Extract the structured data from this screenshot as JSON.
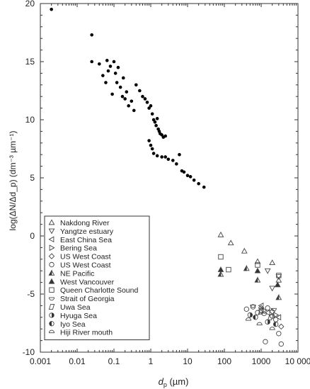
{
  "chart_data": {
    "type": "scatter",
    "xlabel": "d_p (µm)",
    "xlabel_parts": {
      "main": "d",
      "sub": "p",
      "unit": " (µm)"
    },
    "ylabel": "log(ΔN/Δd_p) (dm⁻³ µm⁻¹)",
    "x_scale": "log",
    "xlim": [
      0.001,
      10000
    ],
    "ylim": [
      -10,
      20
    ],
    "x_ticks": [
      0.001,
      0.01,
      0.1,
      1,
      10,
      100,
      1000,
      10000
    ],
    "x_tick_labels": [
      "0.001",
      "0.01",
      "0.1",
      "1",
      "10",
      "100",
      "1000",
      "10 000"
    ],
    "y_ticks": [
      -10,
      -5,
      0,
      5,
      10,
      15,
      20
    ],
    "y_tick_labels": [
      "-10",
      "-5",
      "0",
      "5",
      "10",
      "15",
      "20"
    ],
    "grid": false,
    "legend_position": "bottom-left",
    "series": [
      {
        "name": "",
        "marker": "dot",
        "points": [
          [
            0.002,
            19.5
          ],
          [
            0.025,
            17.3
          ],
          [
            0.025,
            15.0
          ],
          [
            0.04,
            14.8
          ],
          [
            0.05,
            13.8
          ],
          [
            0.06,
            13.2
          ],
          [
            0.065,
            15.1
          ],
          [
            0.07,
            14.2
          ],
          [
            0.08,
            14.6
          ],
          [
            0.09,
            12.2
          ],
          [
            0.1,
            15.0
          ],
          [
            0.11,
            14.0
          ],
          [
            0.12,
            13.2
          ],
          [
            0.13,
            14.5
          ],
          [
            0.15,
            12.8
          ],
          [
            0.17,
            12.0
          ],
          [
            0.18,
            13.6
          ],
          [
            0.2,
            11.8
          ],
          [
            0.22,
            12.4
          ],
          [
            0.25,
            11.2
          ],
          [
            0.3,
            11.6
          ],
          [
            0.35,
            10.8
          ],
          [
            0.4,
            13.0
          ],
          [
            0.5,
            12.5
          ],
          [
            0.6,
            12.0
          ],
          [
            0.7,
            11.8
          ],
          [
            0.8,
            11.5
          ],
          [
            0.9,
            11.0
          ],
          [
            1.0,
            11.2
          ],
          [
            1.1,
            10.5
          ],
          [
            1.2,
            10.0
          ],
          [
            1.3,
            9.8
          ],
          [
            1.4,
            9.5
          ],
          [
            1.5,
            10.1
          ],
          [
            1.6,
            9.2
          ],
          [
            1.7,
            9.0
          ],
          [
            1.8,
            8.8
          ],
          [
            2.0,
            8.7
          ],
          [
            2.2,
            8.5
          ],
          [
            2.5,
            8.6
          ],
          [
            0.9,
            8.2
          ],
          [
            1.0,
            7.8
          ],
          [
            1.1,
            7.5
          ],
          [
            1.2,
            7.1
          ],
          [
            1.5,
            6.9
          ],
          [
            2.0,
            6.8
          ],
          [
            2.5,
            6.8
          ],
          [
            3.0,
            6.6
          ],
          [
            4.0,
            6.5
          ],
          [
            5.0,
            6.2
          ],
          [
            6.0,
            7.0
          ],
          [
            7.0,
            5.6
          ],
          [
            8.0,
            5.5
          ],
          [
            10.0,
            5.2
          ],
          [
            12.0,
            5.1
          ],
          [
            15.0,
            4.8
          ],
          [
            20.0,
            4.5
          ],
          [
            28.0,
            4.2
          ]
        ]
      },
      {
        "name": "Nakdong River",
        "marker": "triangle-up",
        "points": [
          [
            80,
            0.1
          ],
          [
            150,
            -0.6
          ],
          [
            350,
            -1.3
          ],
          [
            2000,
            -2.3
          ],
          [
            3000,
            -3.8
          ],
          [
            800,
            -2.2
          ]
        ]
      },
      {
        "name": "Yangtze estuary",
        "marker": "triangle-down",
        "points": [
          [
            1500,
            -3.0
          ],
          [
            2000,
            -4.5
          ],
          [
            3000,
            -3.5
          ]
        ]
      },
      {
        "name": "East China Sea",
        "marker": "triangle-left",
        "points": [
          [
            1000,
            -6.0
          ],
          [
            1500,
            -6.6
          ],
          [
            3000,
            -7.0
          ]
        ]
      },
      {
        "name": "Bering Sea",
        "marker": "triangle-right",
        "points": [
          [
            1200,
            -6.4
          ],
          [
            2500,
            -6.8
          ]
        ]
      },
      {
        "name": "US West Coast",
        "marker": "diamond",
        "points": [
          [
            1000,
            -6.2
          ],
          [
            2000,
            -6.5
          ],
          [
            3500,
            -7.8
          ]
        ]
      },
      {
        "name": "US West Coast",
        "marker": "circle",
        "points": [
          [
            400,
            -6.3
          ],
          [
            600,
            -6.1
          ],
          [
            800,
            -6.6
          ],
          [
            1000,
            -6.4
          ],
          [
            1500,
            -6.2
          ],
          [
            2000,
            -6.9
          ],
          [
            2500,
            -7.2
          ],
          [
            3000,
            -8.4
          ],
          [
            3500,
            -9.3
          ],
          [
            1300,
            -9.1
          ]
        ]
      },
      {
        "name": "NE Pacific",
        "marker": "triangle-up-half",
        "points": [
          [
            80,
            -3.3
          ],
          [
            400,
            -2.8
          ],
          [
            800,
            -3.8
          ],
          [
            3000,
            -5.3
          ]
        ]
      },
      {
        "name": "West Vancouver",
        "marker": "triangle-up-filled",
        "points": [
          [
            80,
            -2.9
          ],
          [
            800,
            -3.0
          ],
          [
            2800,
            -4.2
          ]
        ]
      },
      {
        "name": "Queen Charlotte Sound",
        "marker": "square",
        "points": [
          [
            80,
            -1.8
          ],
          [
            130,
            -2.9
          ],
          [
            800,
            -2.5
          ],
          [
            3000,
            -3.4
          ]
        ]
      },
      {
        "name": "Strait of Georgia",
        "marker": "semicircle-down",
        "points": [
          [
            600,
            -6.0
          ],
          [
            1200,
            -6.7
          ],
          [
            2200,
            -6.3
          ]
        ]
      },
      {
        "name": "Uwa Sea",
        "marker": "parallelogram",
        "points": [
          [
            1000,
            -6.5
          ],
          [
            1800,
            -7.0
          ]
        ]
      },
      {
        "name": "Hyuga Sea",
        "marker": "half-circle-right",
        "points": [
          [
            500,
            -6.8
          ],
          [
            1500,
            -7.4
          ]
        ]
      },
      {
        "name": "Iyo Sea",
        "marker": "half-circle-left",
        "points": [
          [
            700,
            -7.0
          ],
          [
            2500,
            -7.6
          ]
        ]
      },
      {
        "name": "Hiji River mouth",
        "marker": "semicircle-up",
        "points": [
          [
            450,
            -7.2
          ],
          [
            900,
            -7.6
          ],
          [
            2000,
            -8.0
          ]
        ]
      }
    ]
  }
}
